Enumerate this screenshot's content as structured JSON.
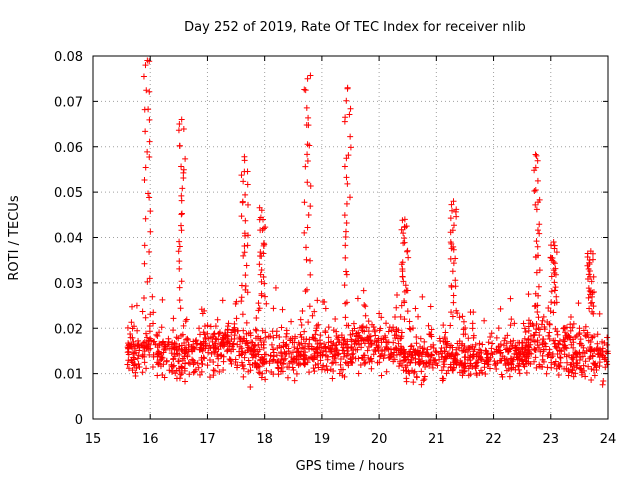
{
  "chart_data": {
    "type": "scatter",
    "title": "Day 252 of 2019, Rate Of TEC Index for receiver nlib",
    "xlabel": "GPS time / hours",
    "ylabel": "ROTI / TECUs",
    "xlim": [
      15,
      24
    ],
    "ylim": [
      0,
      0.08
    ],
    "xticks": [
      "15",
      "16",
      "17",
      "18",
      "19",
      "20",
      "21",
      "22",
      "23",
      "24"
    ],
    "yticks": [
      "0",
      "0.01",
      "0.02",
      "0.03",
      "0.04",
      "0.05",
      "0.06",
      "0.07",
      "0.08"
    ],
    "grid": true,
    "marker": "+",
    "color": "#ff0000",
    "series": [
      {
        "name": "ROTI",
        "clusters": [
          {
            "t0": 15.6,
            "t1": 16.3,
            "base": 0.015,
            "spread": 0.005
          },
          {
            "t0": 16.3,
            "t1": 16.8,
            "base": 0.014,
            "spread": 0.005
          },
          {
            "t0": 16.8,
            "t1": 17.7,
            "base": 0.016,
            "spread": 0.005
          },
          {
            "t0": 17.7,
            "t1": 18.6,
            "base": 0.014,
            "spread": 0.005
          },
          {
            "t0": 18.6,
            "t1": 19.5,
            "base": 0.015,
            "spread": 0.005
          },
          {
            "t0": 19.5,
            "t1": 20.4,
            "base": 0.016,
            "spread": 0.005
          },
          {
            "t0": 20.4,
            "t1": 21.2,
            "base": 0.014,
            "spread": 0.005
          },
          {
            "t0": 21.2,
            "t1": 21.9,
            "base": 0.013,
            "spread": 0.004
          },
          {
            "t0": 21.9,
            "t1": 22.6,
            "base": 0.014,
            "spread": 0.004
          },
          {
            "t0": 22.6,
            "t1": 23.3,
            "base": 0.016,
            "spread": 0.005
          },
          {
            "t0": 23.3,
            "t1": 24.0,
            "base": 0.014,
            "spread": 0.005
          }
        ],
        "spikes": [
          {
            "t": 15.95,
            "peak": 0.079
          },
          {
            "t": 16.55,
            "peak": 0.066
          },
          {
            "t": 17.65,
            "peak": 0.057
          },
          {
            "t": 17.95,
            "peak": 0.046
          },
          {
            "t": 18.75,
            "peak": 0.075
          },
          {
            "t": 19.45,
            "peak": 0.073
          },
          {
            "t": 20.45,
            "peak": 0.044
          },
          {
            "t": 21.3,
            "peak": 0.048
          },
          {
            "t": 22.75,
            "peak": 0.058
          },
          {
            "t": 23.05,
            "peak": 0.039
          },
          {
            "t": 23.7,
            "peak": 0.037
          }
        ]
      }
    ]
  }
}
